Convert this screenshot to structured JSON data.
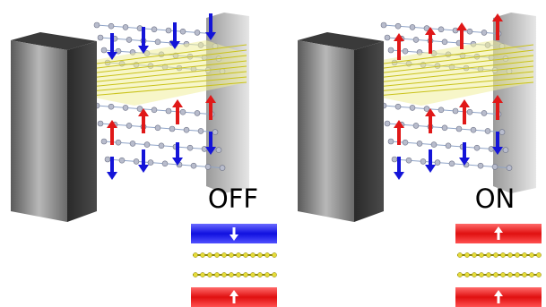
{
  "labels": {
    "off": "OFF",
    "on": "ON"
  }
}
